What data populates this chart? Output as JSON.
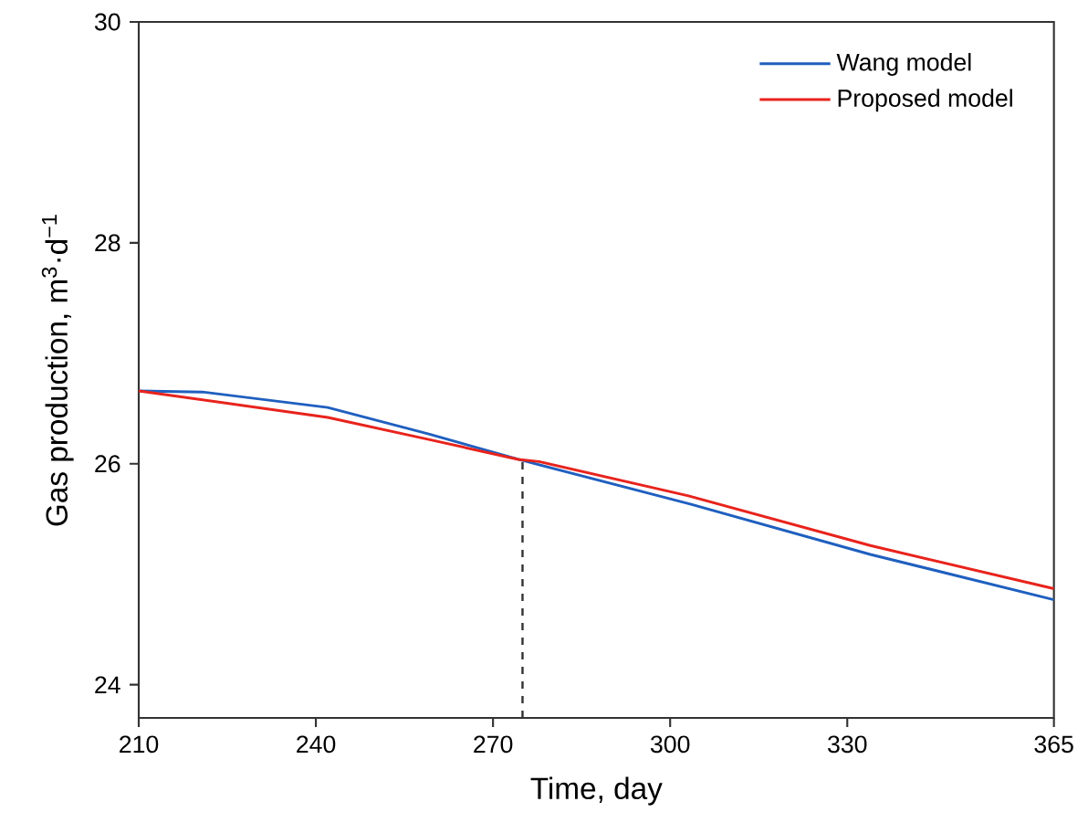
{
  "chart_data": {
    "type": "line",
    "xlabel": "Time, day",
    "ylabel": "Gas production, m$^{3}$·d$^{−1}$",
    "xlim": [
      210,
      365
    ],
    "ylim": [
      23.7,
      30
    ],
    "xticks": [
      210,
      240,
      270,
      300,
      330,
      365
    ],
    "yticks": [
      24,
      26,
      28,
      30
    ],
    "legend": "top right",
    "grid": false,
    "line_style": "solid",
    "series": [
      {
        "name": "Wang model",
        "color": "#1f5fbf",
        "x": [
          210,
          220.8,
          242.0,
          259.1,
          274.3,
          303.1,
          333.9,
          365
        ],
        "values": [
          26.66,
          26.65,
          26.51,
          26.27,
          26.04,
          25.64,
          25.18,
          24.77
        ]
      },
      {
        "name": "Proposed model",
        "color": "#e8231c",
        "x": [
          210,
          242.0,
          259.1,
          274.3,
          277.8,
          303.1,
          333.9,
          365
        ],
        "values": [
          26.66,
          26.42,
          26.22,
          26.04,
          26.02,
          25.71,
          25.26,
          24.87
        ]
      }
    ],
    "ref_lines": [
      {
        "axis": "x",
        "value": 275,
        "line_style": "dashed",
        "color": "#333333"
      }
    ]
  }
}
